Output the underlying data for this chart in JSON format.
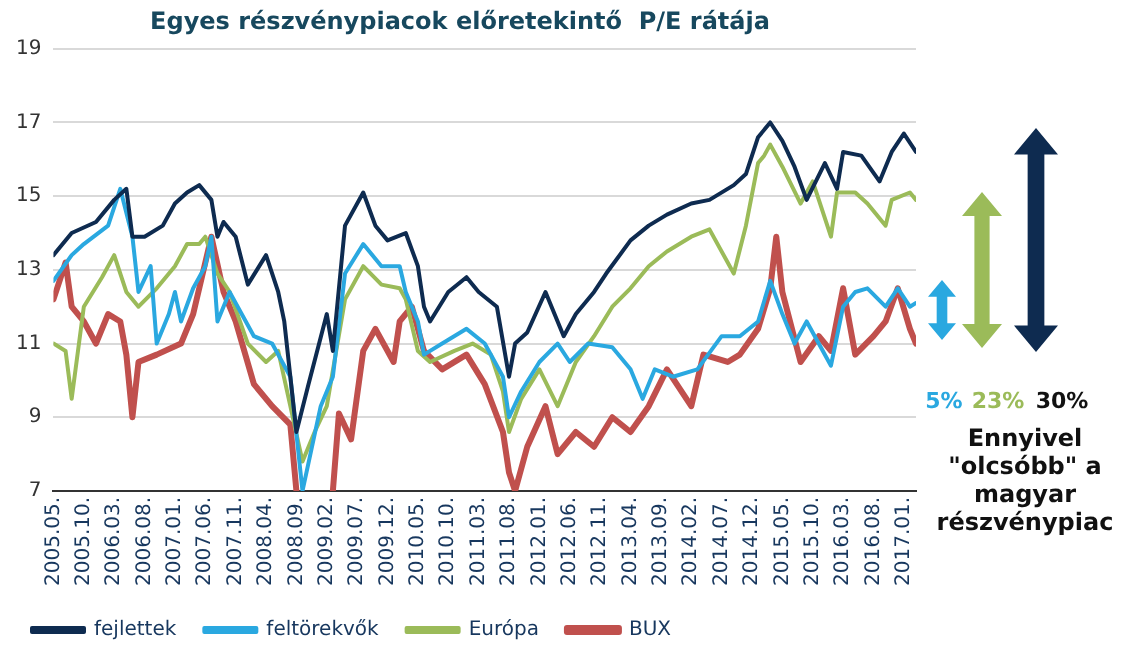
{
  "chart_data": {
    "type": "line",
    "title": "Egyes részvénypiacok előretekintő  P/E rátája",
    "xlim": [
      "2005-05",
      "2017-03"
    ],
    "ylim": [
      7,
      19
    ],
    "yticks": [
      7,
      9,
      11,
      13,
      15,
      17,
      19
    ],
    "xticks": [
      {
        "value": "2005-05",
        "label": "2005.05."
      },
      {
        "value": "2005-10",
        "label": "2005.10."
      },
      {
        "value": "2006-03",
        "label": "2006.03."
      },
      {
        "value": "2006-08",
        "label": "2006.08."
      },
      {
        "value": "2007-01",
        "label": "2007.01."
      },
      {
        "value": "2007-06",
        "label": "2007.06."
      },
      {
        "value": "2007-11",
        "label": "2007.11."
      },
      {
        "value": "2008-04",
        "label": "2008.04."
      },
      {
        "value": "2008-09",
        "label": "2008.09."
      },
      {
        "value": "2009-02",
        "label": "2009.02."
      },
      {
        "value": "2009-07",
        "label": "2009.07."
      },
      {
        "value": "2009-12",
        "label": "2009.12."
      },
      {
        "value": "2010-05",
        "label": "2010.05."
      },
      {
        "value": "2010-10",
        "label": "2010.10."
      },
      {
        "value": "2011-03",
        "label": "2011.03."
      },
      {
        "value": "2011-08",
        "label": "2011.08."
      },
      {
        "value": "2012-01",
        "label": "2012.01."
      },
      {
        "value": "2012-06",
        "label": "2012.06."
      },
      {
        "value": "2012-11",
        "label": "2012.11."
      },
      {
        "value": "2013-04",
        "label": "2013.04."
      },
      {
        "value": "2013-09",
        "label": "2013.09."
      },
      {
        "value": "2014-02",
        "label": "2014.02."
      },
      {
        "value": "2014-07",
        "label": "2014.07."
      },
      {
        "value": "2014-12",
        "label": "2014.12."
      },
      {
        "value": "2015-05",
        "label": "2015.05."
      },
      {
        "value": "2015-10",
        "label": "2015.10."
      },
      {
        "value": "2016-03",
        "label": "2016.03."
      },
      {
        "value": "2016-08",
        "label": "2016.08."
      },
      {
        "value": "2017-01",
        "label": "2017.01."
      }
    ],
    "grid": "y",
    "legend": "bottom",
    "marker": "none",
    "line_style": "solid",
    "annotations": [
      "5%",
      "23%",
      "30%",
      "Ennyivel \"olcsóbb\" a magyar részvénypiac"
    ],
    "series": [
      {
        "name": "fejlettek",
        "color": "#0e2b50",
        "x": [
          "2005-05",
          "2005-08",
          "2005-12",
          "2006-03",
          "2006-05",
          "2006-06",
          "2006-08",
          "2006-11",
          "2007-01",
          "2007-03",
          "2007-05",
          "2007-07",
          "2007-08",
          "2007-09",
          "2007-11",
          "2008-01",
          "2008-04",
          "2008-06",
          "2008-07",
          "2008-09",
          "2008-11",
          "2009-02",
          "2009-03",
          "2009-05",
          "2009-08",
          "2009-10",
          "2009-12",
          "2010-03",
          "2010-05",
          "2010-06",
          "2010-07",
          "2010-10",
          "2011-01",
          "2011-03",
          "2011-06",
          "2011-08",
          "2011-09",
          "2011-11",
          "2012-02",
          "2012-05",
          "2012-07",
          "2012-10",
          "2012-12",
          "2013-04",
          "2013-07",
          "2013-10",
          "2014-02",
          "2014-05",
          "2014-09",
          "2014-11",
          "2015-01",
          "2015-03",
          "2015-05",
          "2015-07",
          "2015-09",
          "2015-12",
          "2016-02",
          "2016-03",
          "2016-06",
          "2016-09",
          "2016-11",
          "2017-01",
          "2017-03"
        ],
        "values": [
          13.4,
          14.0,
          14.3,
          14.9,
          15.2,
          13.9,
          13.9,
          14.2,
          14.8,
          15.1,
          15.3,
          14.9,
          13.9,
          14.3,
          13.9,
          12.6,
          13.4,
          12.4,
          11.6,
          8.6,
          9.9,
          11.8,
          10.8,
          14.2,
          15.1,
          14.2,
          13.8,
          14.0,
          13.1,
          12.0,
          11.6,
          12.4,
          12.8,
          12.4,
          12.0,
          10.1,
          11.0,
          11.3,
          12.4,
          11.2,
          11.8,
          12.4,
          12.9,
          13.8,
          14.2,
          14.5,
          14.8,
          14.9,
          15.3,
          15.6,
          16.6,
          17.0,
          16.5,
          15.8,
          14.9,
          15.9,
          15.2,
          16.2,
          16.1,
          15.4,
          16.2,
          16.7,
          16.2
        ]
      },
      {
        "name": "feltörekvők",
        "color": "#2aa8e0",
        "x": [
          "2005-05",
          "2005-08",
          "2005-10",
          "2006-02",
          "2006-04",
          "2006-06",
          "2006-07",
          "2006-09",
          "2006-10",
          "2006-12",
          "2007-01",
          "2007-02",
          "2007-04",
          "2007-06",
          "2007-07",
          "2007-08",
          "2007-10",
          "2008-02",
          "2008-05",
          "2008-08",
          "2008-10",
          "2009-01",
          "2009-03",
          "2009-05",
          "2009-08",
          "2009-11",
          "2010-02",
          "2010-03",
          "2010-05",
          "2010-06",
          "2010-09",
          "2011-01",
          "2011-04",
          "2011-07",
          "2011-08",
          "2011-10",
          "2012-01",
          "2012-04",
          "2012-06",
          "2012-09",
          "2013-01",
          "2013-04",
          "2013-06",
          "2013-08",
          "2013-11",
          "2014-03",
          "2014-07",
          "2014-10",
          "2015-01",
          "2015-03",
          "2015-05",
          "2015-07",
          "2015-09",
          "2016-01",
          "2016-03",
          "2016-05",
          "2016-07",
          "2016-10",
          "2016-12",
          "2017-02",
          "2017-03"
        ],
        "values": [
          12.7,
          13.4,
          13.7,
          14.2,
          15.2,
          13.9,
          12.4,
          13.1,
          11.0,
          11.8,
          12.4,
          11.6,
          12.5,
          13.1,
          13.9,
          11.6,
          12.4,
          11.2,
          11.0,
          10.1,
          7.0,
          9.3,
          10.1,
          12.9,
          13.7,
          13.1,
          13.1,
          12.4,
          11.6,
          10.7,
          11.0,
          11.4,
          11.0,
          10.1,
          9.0,
          9.7,
          10.5,
          11.0,
          10.5,
          11.0,
          10.9,
          10.3,
          9.5,
          10.3,
          10.1,
          10.3,
          11.2,
          11.2,
          11.6,
          12.7,
          11.8,
          11.0,
          11.6,
          10.4,
          12.0,
          12.4,
          12.5,
          12.0,
          12.5,
          12.0,
          12.1
        ]
      },
      {
        "name": "Európa",
        "color": "#9bbb59",
        "x": [
          "2005-05",
          "2005-07",
          "2005-08",
          "2005-10",
          "2006-01",
          "2006-03",
          "2006-05",
          "2006-07",
          "2006-10",
          "2007-01",
          "2007-03",
          "2007-05",
          "2007-06",
          "2007-08",
          "2007-10",
          "2008-01",
          "2008-04",
          "2008-06",
          "2008-08",
          "2008-10",
          "2008-12",
          "2009-02",
          "2009-05",
          "2009-08",
          "2009-11",
          "2010-02",
          "2010-03",
          "2010-05",
          "2010-07",
          "2010-11",
          "2011-02",
          "2011-05",
          "2011-07",
          "2011-08",
          "2011-10",
          "2012-01",
          "2012-04",
          "2012-07",
          "2012-10",
          "2013-01",
          "2013-04",
          "2013-07",
          "2013-10",
          "2014-02",
          "2014-05",
          "2014-09",
          "2014-11",
          "2015-01",
          "2015-02",
          "2015-03",
          "2015-05",
          "2015-08",
          "2015-10",
          "2016-01",
          "2016-02",
          "2016-05",
          "2016-07",
          "2016-10",
          "2016-11",
          "2017-02",
          "2017-03"
        ],
        "values": [
          11.0,
          10.8,
          9.5,
          12.0,
          12.8,
          13.4,
          12.4,
          12.0,
          12.5,
          13.1,
          13.7,
          13.7,
          13.9,
          12.9,
          12.4,
          11.0,
          10.5,
          10.8,
          9.3,
          7.8,
          8.6,
          9.3,
          12.2,
          13.1,
          12.6,
          12.5,
          12.2,
          10.8,
          10.5,
          10.8,
          11.0,
          10.7,
          9.7,
          8.6,
          9.5,
          10.3,
          9.3,
          10.5,
          11.2,
          12.0,
          12.5,
          13.1,
          13.5,
          13.9,
          14.1,
          12.9,
          14.2,
          15.9,
          16.1,
          16.4,
          15.8,
          14.8,
          15.4,
          13.9,
          15.1,
          15.1,
          14.8,
          14.2,
          14.9,
          15.1,
          14.9
        ]
      },
      {
        "name": "BUX",
        "color": "#c0504d",
        "x": [
          "2005-05",
          "2005-07",
          "2005-08",
          "2005-10",
          "2005-12",
          "2006-02",
          "2006-04",
          "2006-05",
          "2006-06",
          "2006-07",
          "2006-10",
          "2007-02",
          "2007-04",
          "2007-07",
          "2007-09",
          "2007-11",
          "2008-02",
          "2008-05",
          "2008-08",
          "2008-09",
          "2008-10",
          "2009-03",
          "2009-04",
          "2009-06",
          "2009-08",
          "2009-10",
          "2010-01",
          "2010-02",
          "2010-04",
          "2010-06",
          "2010-09",
          "2011-01",
          "2011-04",
          "2011-07",
          "2011-08",
          "2011-09",
          "2011-11",
          "2012-02",
          "2012-04",
          "2012-07",
          "2012-10",
          "2013-01",
          "2013-04",
          "2013-07",
          "2013-10",
          "2014-02",
          "2014-04",
          "2014-08",
          "2014-10",
          "2015-01",
          "2015-03",
          "2015-04",
          "2015-05",
          "2015-08",
          "2015-11",
          "2016-01",
          "2016-03",
          "2016-05",
          "2016-08",
          "2016-10",
          "2016-12",
          "2017-02",
          "2017-03"
        ],
        "values": [
          12.2,
          13.2,
          12.0,
          11.6,
          11.0,
          11.8,
          11.6,
          10.7,
          9.0,
          10.5,
          10.7,
          11.0,
          11.8,
          13.9,
          12.4,
          11.6,
          9.9,
          9.3,
          8.8,
          7.0,
          null,
          7.0,
          9.1,
          8.4,
          10.8,
          11.4,
          10.5,
          11.6,
          12.0,
          10.8,
          10.3,
          10.7,
          9.9,
          8.6,
          7.5,
          7.0,
          8.2,
          9.3,
          8.0,
          8.6,
          8.2,
          9.0,
          8.6,
          9.3,
          10.3,
          9.3,
          10.7,
          10.5,
          10.7,
          11.4,
          12.5,
          13.9,
          12.4,
          10.5,
          11.2,
          10.8,
          12.5,
          10.7,
          11.2,
          11.6,
          12.5,
          11.4,
          11.0
        ]
      }
    ]
  }
}
